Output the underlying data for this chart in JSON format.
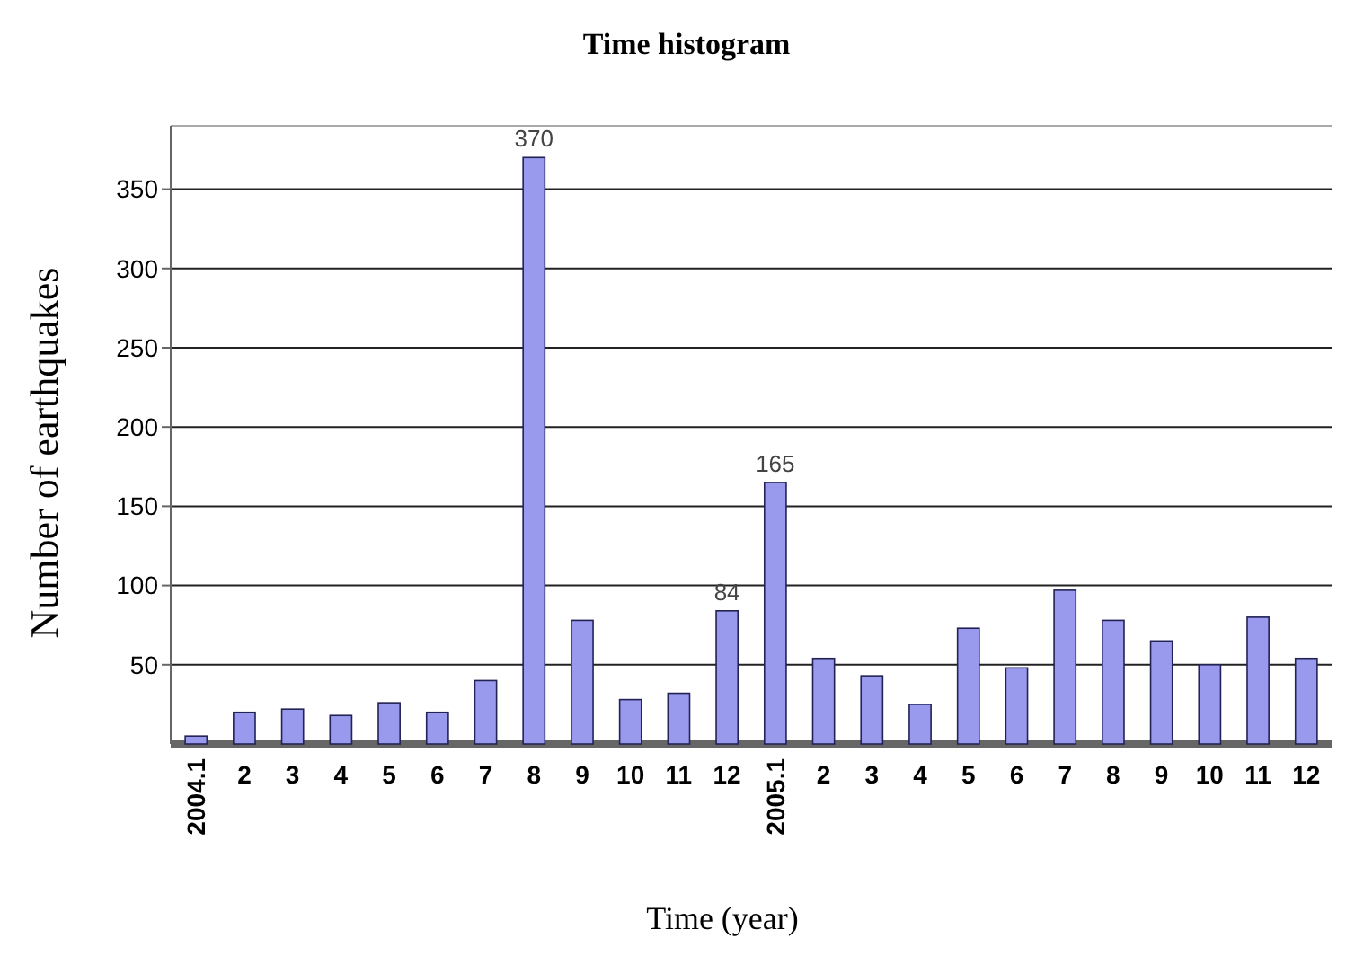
{
  "chart_data": {
    "type": "bar",
    "title": "Time histogram",
    "xlabel": "Time (year)",
    "ylabel": "Number of earthquakes",
    "categories": [
      "2004.1",
      "2",
      "3",
      "4",
      "5",
      "6",
      "7",
      "8",
      "9",
      "10",
      "11",
      "12",
      "2005.1",
      "2",
      "3",
      "4",
      "5",
      "6",
      "7",
      "8",
      "9",
      "10",
      "11",
      "12"
    ],
    "values": [
      5,
      20,
      22,
      18,
      26,
      20,
      40,
      370,
      78,
      28,
      32,
      84,
      165,
      54,
      43,
      25,
      73,
      48,
      97,
      78,
      65,
      50,
      80,
      54
    ],
    "value_labels": [
      null,
      null,
      null,
      null,
      null,
      null,
      null,
      "370",
      null,
      null,
      null,
      "84",
      "165",
      null,
      null,
      null,
      null,
      null,
      null,
      null,
      null,
      null,
      null,
      null
    ],
    "color": "#9999ee",
    "ylim": [
      0,
      390
    ],
    "yticks": [
      50,
      100,
      150,
      200,
      250,
      300,
      350
    ],
    "grid": "y"
  }
}
